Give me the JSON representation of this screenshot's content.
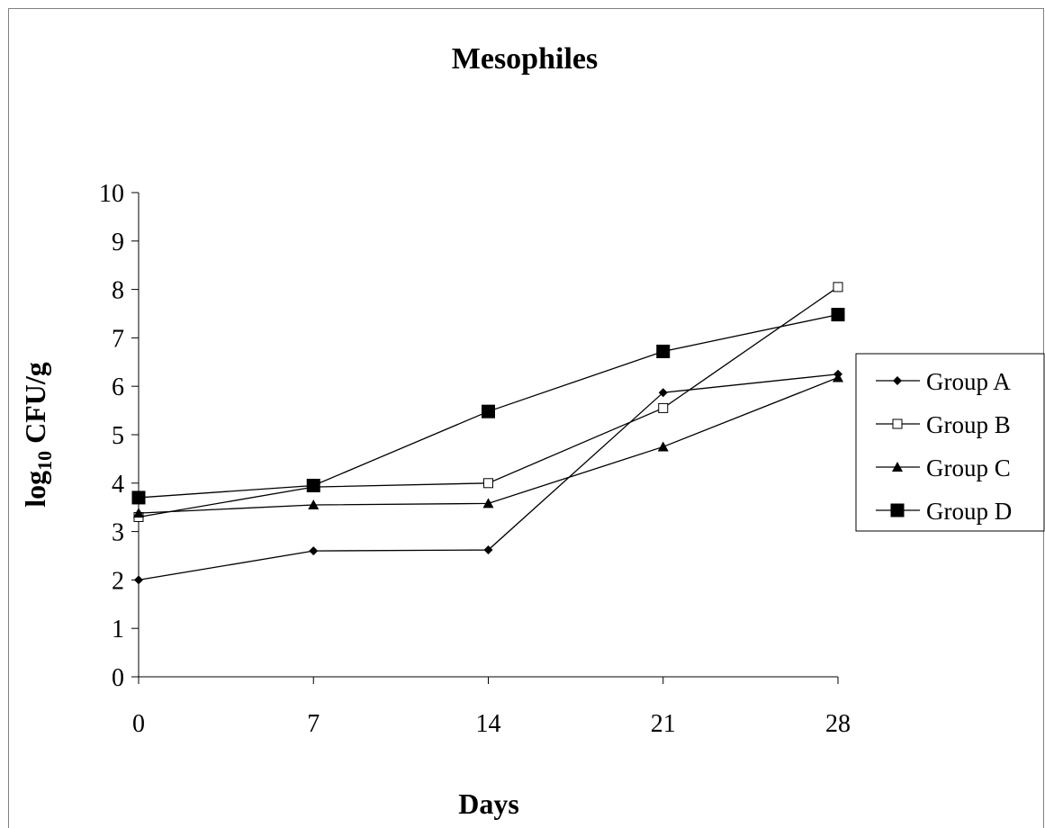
{
  "chart_data": {
    "type": "line",
    "title": "Mesophiles",
    "xlabel": "Days",
    "ylabel_main": "log",
    "ylabel_sub": "10",
    "ylabel_rest": " CFU/g",
    "x": [
      0,
      7,
      14,
      21,
      28
    ],
    "x_tick_labels": [
      "0",
      "7",
      "14",
      "21",
      "28"
    ],
    "xlim": [
      0,
      28
    ],
    "ylim": [
      0,
      10
    ],
    "y_ticks": [
      0,
      1,
      2,
      3,
      4,
      5,
      6,
      7,
      8,
      9,
      10
    ],
    "y_tick_labels": [
      "0",
      "1",
      "2",
      "3",
      "4",
      "5",
      "6",
      "7",
      "8",
      "9",
      "10"
    ],
    "grid": false,
    "legend_position": "right",
    "series": [
      {
        "name": "Group A",
        "marker": "diamond",
        "values": [
          2.0,
          2.6,
          2.62,
          5.87,
          6.25
        ]
      },
      {
        "name": "Group B",
        "marker": "open-square",
        "values": [
          3.3,
          3.92,
          4.0,
          5.55,
          8.05
        ]
      },
      {
        "name": "Group C",
        "marker": "triangle",
        "values": [
          3.38,
          3.55,
          3.58,
          4.75,
          6.18
        ]
      },
      {
        "name": "Group D",
        "marker": "filled-square",
        "values": [
          3.7,
          3.95,
          5.48,
          6.72,
          7.48
        ]
      }
    ],
    "colors": {
      "line": "#000000",
      "background": "#ffffff",
      "frame": "#808080"
    }
  }
}
